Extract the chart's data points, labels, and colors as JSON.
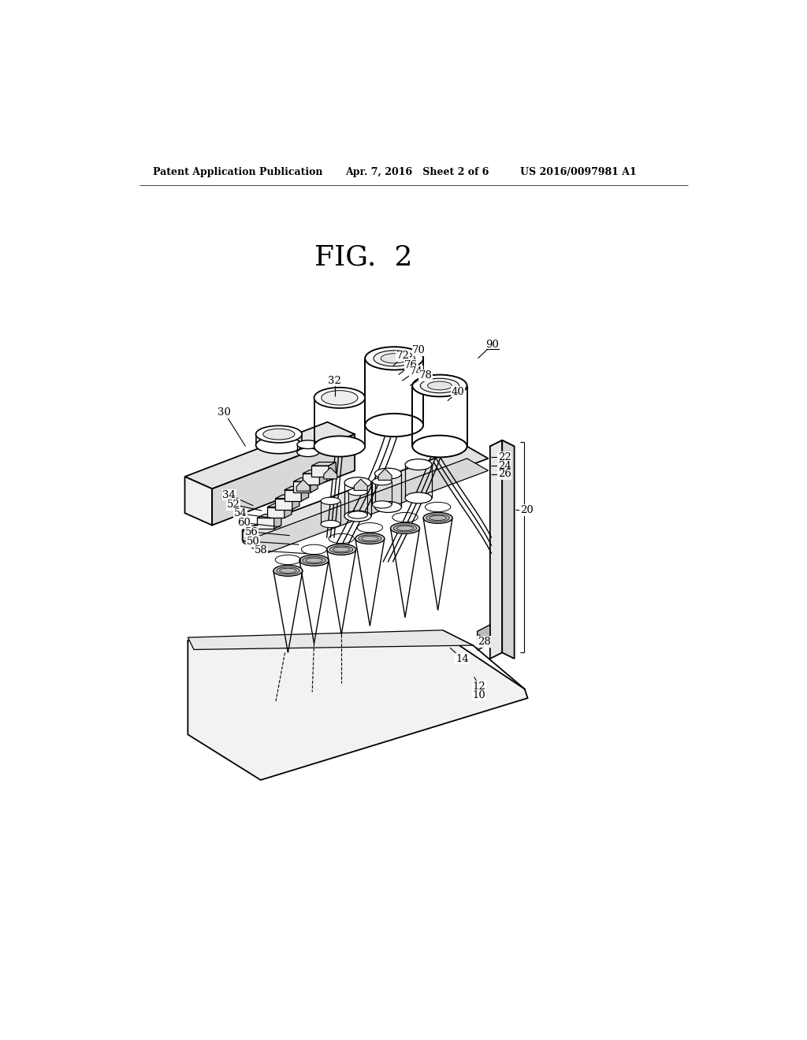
{
  "bg_color": "#ffffff",
  "header_left": "Patent Application Publication",
  "header_mid": "Apr. 7, 2016   Sheet 2 of 6",
  "header_right": "US 2016/0097981 A1",
  "fig_title": "FIG.  2",
  "lw_main": 1.4,
  "lw_thin": 0.9,
  "lw_label": 0.8
}
